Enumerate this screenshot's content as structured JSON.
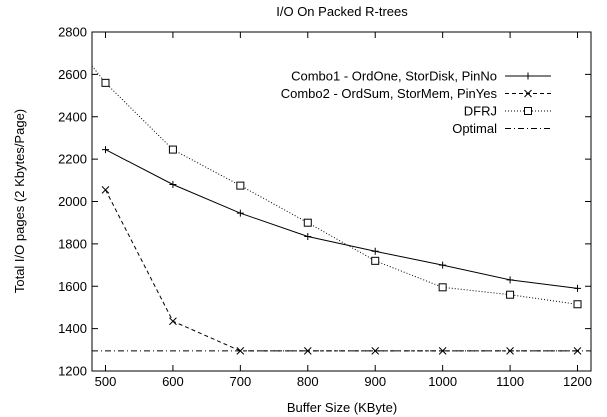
{
  "chart_data": {
    "type": "line",
    "title": "I/O On Packed R-trees",
    "xlabel": "Buffer Size (KByte)",
    "ylabel": "Total I/O pages (2 Kbytes/Page)",
    "xlim": [
      480,
      1220
    ],
    "ylim": [
      1200,
      2800
    ],
    "xticks": [
      500,
      600,
      700,
      800,
      900,
      1000,
      1100,
      1200
    ],
    "yticks": [
      1200,
      1400,
      1600,
      1800,
      2000,
      2200,
      2400,
      2600,
      2800
    ],
    "grid": false,
    "legend_position": "top-right",
    "series": [
      {
        "name": "Combo1 - OrdOne, StorDisk, PinNo",
        "marker": "plus",
        "dash": "solid",
        "color": "#000000",
        "x": [
          500,
          600,
          700,
          800,
          900,
          1000,
          1100,
          1200
        ],
        "y": [
          2245,
          2080,
          1945,
          1835,
          1765,
          1700,
          1630,
          1590
        ]
      },
      {
        "name": "Combo2 - OrdSum, StorMem, PinYes",
        "marker": "x",
        "dash": "dashed",
        "color": "#000000",
        "x": [
          500,
          600,
          700,
          800,
          900,
          1000,
          1100,
          1200
        ],
        "y": [
          2055,
          1435,
          1295,
          1295,
          1295,
          1295,
          1295,
          1295
        ]
      },
      {
        "name": "DFRJ",
        "marker": "square",
        "dash": "dotted",
        "color": "#000000",
        "x": [
          480,
          500,
          600,
          700,
          800,
          900,
          1000,
          1100,
          1200
        ],
        "y": [
          2640,
          2560,
          2245,
          2075,
          1900,
          1720,
          1595,
          1560,
          1515
        ],
        "markers_at": [
          500,
          600,
          700,
          800,
          900,
          1000,
          1100,
          1200
        ]
      },
      {
        "name": "Optimal",
        "marker": "none",
        "dash": "dashdot",
        "color": "#000000",
        "x": [
          480,
          1220
        ],
        "y": [
          1295,
          1295
        ]
      }
    ]
  }
}
